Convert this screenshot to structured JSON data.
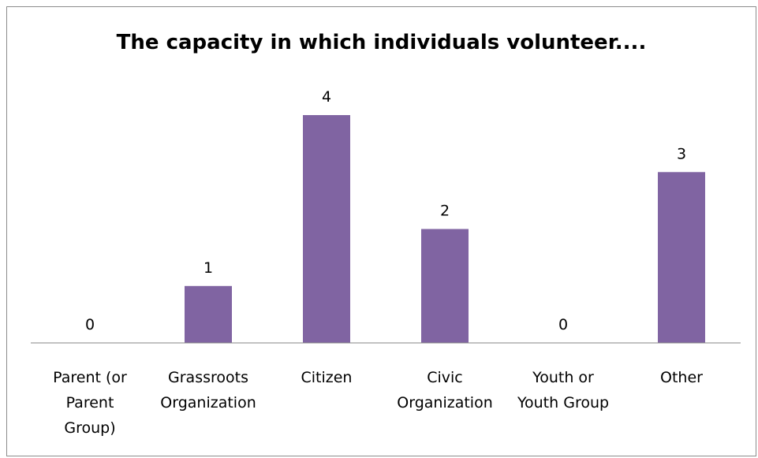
{
  "chart_data": {
    "type": "bar",
    "title": "The capacity in which individuals volunteer....",
    "categories": [
      [
        "Parent (or",
        "Parent",
        "Group)"
      ],
      [
        "Grassroots",
        "Organization"
      ],
      [
        "Citizen"
      ],
      [
        "Civic",
        "Organization"
      ],
      [
        "Youth or",
        "Youth Group"
      ],
      [
        "Other"
      ]
    ],
    "values": [
      0,
      1,
      4,
      2,
      0,
      3
    ],
    "data_labels": [
      "0",
      "1",
      "4",
      "2",
      "0",
      "3"
    ],
    "xlabel": "",
    "ylabel": "",
    "ylim": [
      0,
      4
    ],
    "grid": false,
    "legend": "none",
    "colors": {
      "bar": "#8064a2",
      "axis": "#868686",
      "border": "#8c8c8c",
      "text": "#000000"
    }
  }
}
